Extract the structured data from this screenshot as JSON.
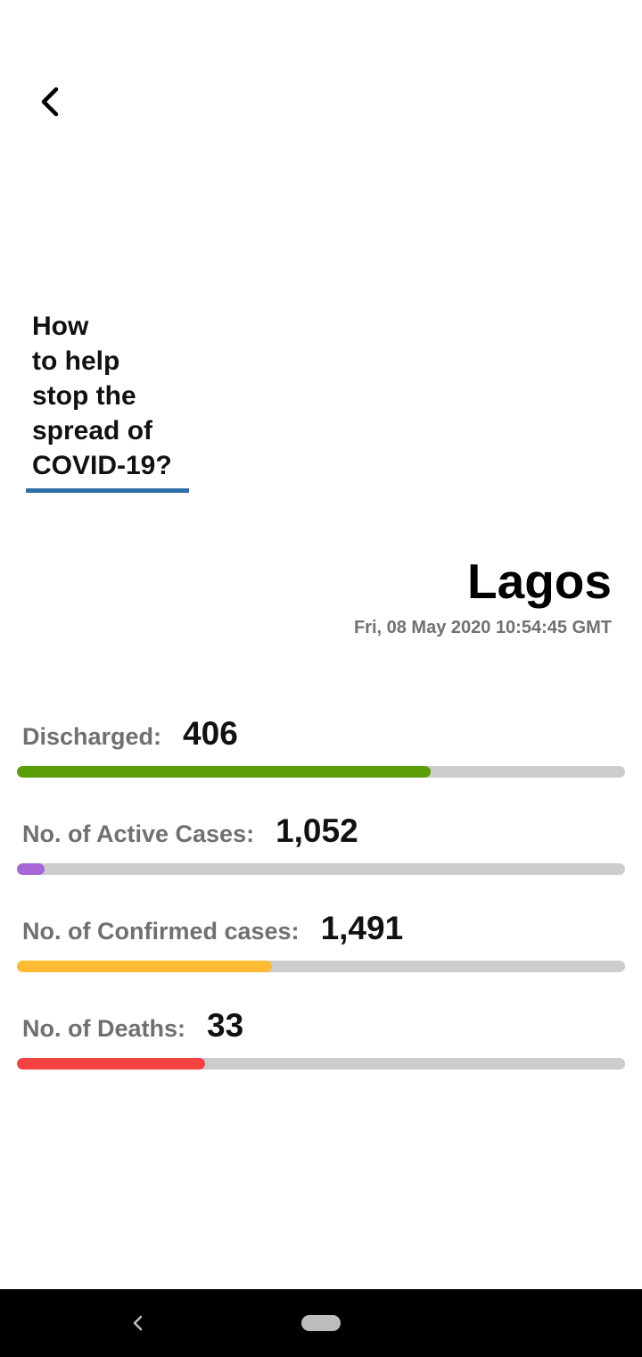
{
  "header": {
    "back_icon": "chevron-left-icon"
  },
  "help_link": {
    "label": "How\nto help\nstop the\nspread of\nCOVID-19?",
    "underline_color": "#2e6fa5"
  },
  "location": {
    "name": "Lagos",
    "updated": "Fri, 08 May 2020 10:54:45 GMT"
  },
  "stats": [
    {
      "label": "Discharged:",
      "value": "406",
      "fill": 0.68,
      "color": "#5c9e07"
    },
    {
      "label": "No. of Active Cases:",
      "value": "1,052",
      "fill": 0.045,
      "color": "#a666d6"
    },
    {
      "label": "No. of Confirmed cases:",
      "value": "1,491",
      "fill": 0.42,
      "color": "#ffbb33"
    },
    {
      "label": "No. of Deaths:",
      "value": "33",
      "fill": 0.31,
      "color": "#f44242"
    }
  ],
  "colors": {
    "track": "#cccccc",
    "label": "#707070",
    "nav_bar": "#000000"
  },
  "system_nav": {
    "back_icon": "triangle-back-icon",
    "home_icon": "home-pill-icon"
  }
}
